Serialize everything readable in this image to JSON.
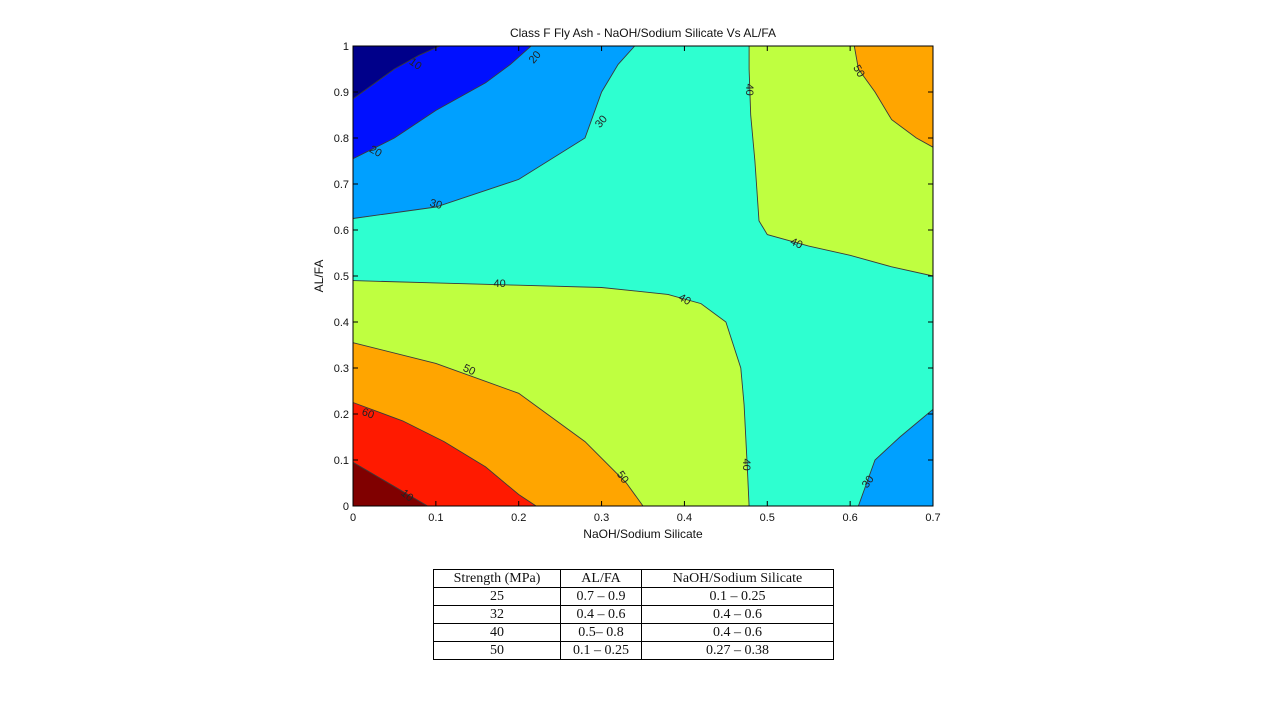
{
  "chart_data": {
    "type": "contour",
    "title": "Class F Fly Ash - NaOH/Sodium Silicate Vs AL/FA",
    "xlabel": "NaOH/Sodium Silicate",
    "ylabel": "AL/FA",
    "xlim": [
      0,
      0.7
    ],
    "ylim": [
      0,
      1
    ],
    "x_ticks": [
      "0",
      "0.1",
      "0.2",
      "0.3",
      "0.4",
      "0.5",
      "0.6",
      "0.7"
    ],
    "y_ticks": [
      "0",
      "0.1",
      "0.2",
      "0.3",
      "0.4",
      "0.5",
      "0.6",
      "0.7",
      "0.8",
      "0.9",
      "1"
    ],
    "grid": false,
    "colormap": "jet",
    "colors": {
      "level_10": "#800000",
      "level_60": "#ff1a00",
      "level_50": "#ffa500",
      "level_40": "#bfff40",
      "level_30": "#2effd0",
      "level_20_30": "#00a0ff",
      "level_20": "#0010ff",
      "level_10_low": "#00008a"
    },
    "regions": [
      {
        "name": "region-dark-red",
        "level": "10",
        "fill": "#800000",
        "points": [
          [
            0,
            0
          ],
          [
            0.09,
            0
          ],
          [
            0,
            0.095
          ]
        ]
      },
      {
        "name": "region-red",
        "level": "60",
        "fill": "#ff1a00",
        "points": [
          [
            0,
            0.095
          ],
          [
            0.09,
            0
          ],
          [
            0.221,
            0
          ],
          [
            0.2,
            0.025
          ],
          [
            0.16,
            0.085
          ],
          [
            0.11,
            0.14
          ],
          [
            0.06,
            0.185
          ],
          [
            0,
            0.225
          ]
        ]
      },
      {
        "name": "region-orange-bottom",
        "level": "50",
        "fill": "#ffa500",
        "points": [
          [
            0,
            0.225
          ],
          [
            0.06,
            0.185
          ],
          [
            0.11,
            0.14
          ],
          [
            0.16,
            0.085
          ],
          [
            0.2,
            0.025
          ],
          [
            0.221,
            0
          ],
          [
            0.35,
            0
          ],
          [
            0.33,
            0.05
          ],
          [
            0.28,
            0.14
          ],
          [
            0.2,
            0.245
          ],
          [
            0.1,
            0.31
          ],
          [
            0,
            0.355
          ]
        ]
      },
      {
        "name": "region-green-left",
        "level": "40",
        "fill": "#bfff40",
        "points": [
          [
            0,
            0.355
          ],
          [
            0.1,
            0.31
          ],
          [
            0.2,
            0.245
          ],
          [
            0.28,
            0.14
          ],
          [
            0.33,
            0.05
          ],
          [
            0.35,
            0
          ],
          [
            0.478,
            0
          ],
          [
            0.476,
            0.08
          ],
          [
            0.472,
            0.22
          ],
          [
            0.468,
            0.3
          ],
          [
            0.45,
            0.4
          ],
          [
            0.42,
            0.44
          ],
          [
            0.38,
            0.46
          ],
          [
            0.3,
            0.475
          ],
          [
            0.2,
            0.48
          ],
          [
            0.1,
            0.485
          ],
          [
            0,
            0.49
          ]
        ]
      },
      {
        "name": "region-cyan",
        "level": "30",
        "fill": "#2effd0",
        "points": [
          [
            0,
            0.49
          ],
          [
            0.1,
            0.485
          ],
          [
            0.2,
            0.48
          ],
          [
            0.3,
            0.475
          ],
          [
            0.38,
            0.46
          ],
          [
            0.42,
            0.44
          ],
          [
            0.45,
            0.4
          ],
          [
            0.468,
            0.3
          ],
          [
            0.472,
            0.22
          ],
          [
            0.476,
            0.08
          ],
          [
            0.478,
            0
          ],
          [
            0.61,
            0
          ],
          [
            0.63,
            0.1
          ],
          [
            0.66,
            0.15
          ],
          [
            0.7,
            0.21
          ],
          [
            0.7,
            0.5
          ],
          [
            0.65,
            0.52
          ],
          [
            0.6,
            0.545
          ],
          [
            0.55,
            0.565
          ],
          [
            0.5,
            0.59
          ],
          [
            0.49,
            0.62
          ],
          [
            0.485,
            0.75
          ],
          [
            0.48,
            0.85
          ],
          [
            0.478,
            0.95
          ],
          [
            0.478,
            1
          ],
          [
            0.34,
            1
          ],
          [
            0.32,
            0.96
          ],
          [
            0.3,
            0.9
          ],
          [
            0.28,
            0.8
          ],
          [
            0.2,
            0.71
          ],
          [
            0.1,
            0.65
          ],
          [
            0,
            0.625
          ]
        ]
      },
      {
        "name": "region-green-right",
        "level": "40",
        "fill": "#bfff40",
        "points": [
          [
            0.478,
            1
          ],
          [
            0.478,
            0.95
          ],
          [
            0.48,
            0.85
          ],
          [
            0.485,
            0.75
          ],
          [
            0.49,
            0.62
          ],
          [
            0.5,
            0.59
          ],
          [
            0.55,
            0.565
          ],
          [
            0.6,
            0.545
          ],
          [
            0.65,
            0.52
          ],
          [
            0.7,
            0.5
          ],
          [
            0.7,
            0.78
          ],
          [
            0.68,
            0.8
          ],
          [
            0.65,
            0.84
          ],
          [
            0.63,
            0.9
          ],
          [
            0.61,
            0.95
          ],
          [
            0.605,
            1
          ]
        ]
      },
      {
        "name": "region-orange-top",
        "level": "50",
        "fill": "#ffa500",
        "points": [
          [
            0.605,
            1
          ],
          [
            0.61,
            0.95
          ],
          [
            0.63,
            0.9
          ],
          [
            0.65,
            0.84
          ],
          [
            0.68,
            0.8
          ],
          [
            0.7,
            0.78
          ],
          [
            0.7,
            1
          ]
        ]
      },
      {
        "name": "region-blue-right",
        "level": "30",
        "fill": "#00a0ff",
        "points": [
          [
            0.61,
            0
          ],
          [
            0.7,
            0
          ],
          [
            0.7,
            0.21
          ],
          [
            0.66,
            0.15
          ],
          [
            0.63,
            0.1
          ]
        ]
      },
      {
        "name": "region-light-blue-left",
        "level": "20",
        "fill": "#00a0ff",
        "points": [
          [
            0,
            0.625
          ],
          [
            0.1,
            0.65
          ],
          [
            0.2,
            0.71
          ],
          [
            0.28,
            0.8
          ],
          [
            0.3,
            0.9
          ],
          [
            0.32,
            0.96
          ],
          [
            0.34,
            1
          ],
          [
            0.215,
            1
          ],
          [
            0.19,
            0.96
          ],
          [
            0.16,
            0.92
          ],
          [
            0.1,
            0.86
          ],
          [
            0.05,
            0.8
          ],
          [
            0,
            0.755
          ]
        ]
      },
      {
        "name": "region-blue-left",
        "level": "20",
        "fill": "#0010ff",
        "points": [
          [
            0,
            0.755
          ],
          [
            0.05,
            0.8
          ],
          [
            0.1,
            0.86
          ],
          [
            0.16,
            0.92
          ],
          [
            0.19,
            0.96
          ],
          [
            0.215,
            1
          ],
          [
            0.105,
            1
          ],
          [
            0.08,
            0.98
          ],
          [
            0.05,
            0.95
          ],
          [
            0,
            0.885
          ]
        ]
      },
      {
        "name": "region-navy-left",
        "level": "10",
        "fill": "#00008a",
        "points": [
          [
            0,
            0.885
          ],
          [
            0.05,
            0.95
          ],
          [
            0.08,
            0.98
          ],
          [
            0.105,
            1
          ],
          [
            0,
            1
          ]
        ]
      }
    ],
    "contour_lines": [
      [
        [
          0,
          0.095
        ],
        [
          0.09,
          0
        ]
      ],
      [
        [
          0,
          0.225
        ],
        [
          0.06,
          0.185
        ],
        [
          0.11,
          0.14
        ],
        [
          0.16,
          0.085
        ],
        [
          0.2,
          0.025
        ],
        [
          0.221,
          0
        ]
      ],
      [
        [
          0,
          0.355
        ],
        [
          0.1,
          0.31
        ],
        [
          0.2,
          0.245
        ],
        [
          0.28,
          0.14
        ],
        [
          0.33,
          0.05
        ],
        [
          0.35,
          0
        ]
      ],
      [
        [
          0,
          0.49
        ],
        [
          0.1,
          0.485
        ],
        [
          0.2,
          0.48
        ],
        [
          0.3,
          0.475
        ],
        [
          0.38,
          0.46
        ],
        [
          0.42,
          0.44
        ],
        [
          0.45,
          0.4
        ],
        [
          0.468,
          0.3
        ],
        [
          0.472,
          0.22
        ],
        [
          0.476,
          0.08
        ],
        [
          0.478,
          0
        ]
      ],
      [
        [
          0.478,
          1
        ],
        [
          0.478,
          0.95
        ],
        [
          0.48,
          0.85
        ],
        [
          0.485,
          0.75
        ],
        [
          0.49,
          0.62
        ],
        [
          0.5,
          0.59
        ],
        [
          0.55,
          0.565
        ],
        [
          0.6,
          0.545
        ],
        [
          0.65,
          0.52
        ],
        [
          0.7,
          0.5
        ]
      ],
      [
        [
          0.605,
          1
        ],
        [
          0.61,
          0.95
        ],
        [
          0.63,
          0.9
        ],
        [
          0.65,
          0.84
        ],
        [
          0.68,
          0.8
        ],
        [
          0.7,
          0.78
        ]
      ],
      [
        [
          0.61,
          0
        ],
        [
          0.63,
          0.1
        ],
        [
          0.66,
          0.15
        ],
        [
          0.7,
          0.21
        ]
      ],
      [
        [
          0,
          0.625
        ],
        [
          0.1,
          0.65
        ],
        [
          0.2,
          0.71
        ],
        [
          0.28,
          0.8
        ],
        [
          0.3,
          0.9
        ],
        [
          0.32,
          0.96
        ],
        [
          0.34,
          1
        ]
      ],
      [
        [
          0,
          0.755
        ],
        [
          0.05,
          0.8
        ],
        [
          0.1,
          0.86
        ],
        [
          0.16,
          0.92
        ],
        [
          0.19,
          0.96
        ],
        [
          0.215,
          1
        ]
      ],
      [
        [
          0,
          0.885
        ],
        [
          0.05,
          0.95
        ],
        [
          0.08,
          0.98
        ],
        [
          0.105,
          1
        ]
      ]
    ],
    "contour_labels": [
      {
        "text": "10",
        "x": 0.065,
        "y": 0.022,
        "angle": 40
      },
      {
        "text": "60",
        "x": 0.018,
        "y": 0.2,
        "angle": 20
      },
      {
        "text": "50",
        "x": 0.14,
        "y": 0.295,
        "angle": 25
      },
      {
        "text": "50",
        "x": 0.325,
        "y": 0.062,
        "angle": 55
      },
      {
        "text": "40",
        "x": 0.177,
        "y": 0.482,
        "angle": 0
      },
      {
        "text": "40",
        "x": 0.4,
        "y": 0.448,
        "angle": 30
      },
      {
        "text": "40",
        "x": 0.474,
        "y": 0.09,
        "angle": 90
      },
      {
        "text": "40",
        "x": 0.478,
        "y": 0.905,
        "angle": 90
      },
      {
        "text": "40",
        "x": 0.535,
        "y": 0.57,
        "angle": 25
      },
      {
        "text": "50",
        "x": 0.61,
        "y": 0.945,
        "angle": 60
      },
      {
        "text": "30",
        "x": 0.622,
        "y": 0.052,
        "angle": -55
      },
      {
        "text": "30",
        "x": 0.1,
        "y": 0.655,
        "angle": 15
      },
      {
        "text": "30",
        "x": 0.3,
        "y": 0.835,
        "angle": -50
      },
      {
        "text": "20",
        "x": 0.027,
        "y": 0.77,
        "angle": 30
      },
      {
        "text": "20",
        "x": 0.22,
        "y": 0.975,
        "angle": -50
      },
      {
        "text": "10",
        "x": 0.075,
        "y": 0.96,
        "angle": 35
      }
    ]
  },
  "table": {
    "headers": [
      "Strength (MPa)",
      "AL/FA",
      "NaOH/Sodium Silicate"
    ],
    "rows": [
      [
        "25",
        "0.7 – 0.9",
        "0.1 – 0.25"
      ],
      [
        "32",
        "0.4 – 0.6",
        "0.4 – 0.6"
      ],
      [
        "40",
        "0.5– 0.8",
        "0.4 – 0.6"
      ],
      [
        "50",
        "0.1 – 0.25",
        "0.27 – 0.38"
      ]
    ]
  }
}
